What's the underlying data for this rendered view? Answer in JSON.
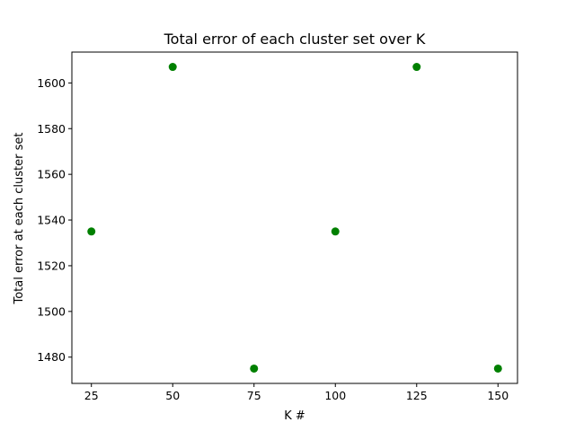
{
  "chart_data": {
    "type": "scatter",
    "title": "Total error of each cluster set over K",
    "xlabel": "K #",
    "ylabel": "Total error at each cluster set",
    "x": [
      25,
      50,
      75,
      100,
      125,
      150
    ],
    "y": [
      1535,
      1607,
      1475,
      1535,
      1607,
      1475
    ],
    "xlim": [
      19,
      156
    ],
    "ylim": [
      1468.5,
      1613.5
    ],
    "xticks": [
      25,
      50,
      75,
      100,
      125,
      150
    ],
    "yticks": [
      1480,
      1500,
      1520,
      1540,
      1560,
      1580,
      1600
    ],
    "marker_color": "#008000",
    "grid": false,
    "legend": "none"
  }
}
